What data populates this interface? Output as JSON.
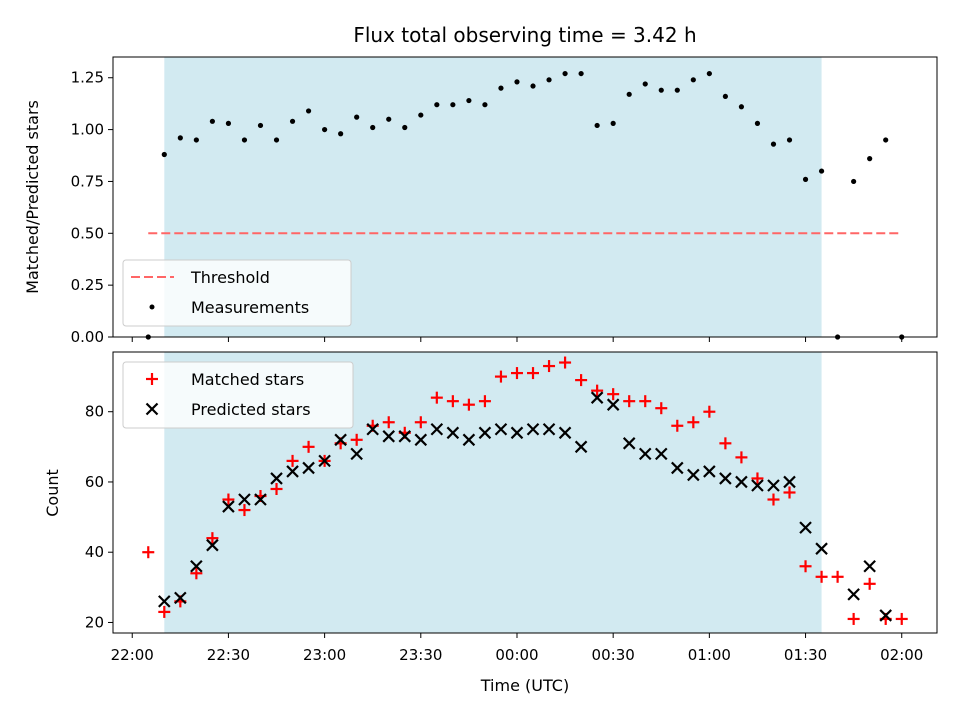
{
  "chart_data": {
    "type": "scatter",
    "title": "Flux total observing time = 3.42 h",
    "xlabel": "Time (UTC)",
    "x_ticks": [
      "22:00",
      "22:30",
      "23:00",
      "23:30",
      "00:00",
      "00:30",
      "01:00",
      "01:30",
      "02:00"
    ],
    "x_tick_minutes": [
      0,
      30,
      60,
      90,
      120,
      150,
      180,
      210,
      240
    ],
    "xlim_minutes": [
      -6,
      251
    ],
    "highlight_span_minutes": [
      10,
      215
    ],
    "colors": {
      "highlight": "#add8e6",
      "threshold": "#ff6666",
      "measurements": "#000000",
      "matched": "#ff0000",
      "predicted": "#000000"
    },
    "top": {
      "ylabel": "Matched/Predicted stars",
      "ylim": [
        0,
        1.35
      ],
      "y_ticks": [
        "0.00",
        "0.25",
        "0.50",
        "0.75",
        "1.00",
        "1.25"
      ],
      "y_tick_values": [
        0,
        0.25,
        0.5,
        0.75,
        1.0,
        1.25
      ],
      "legend": [
        "Threshold",
        "Measurements"
      ],
      "threshold": {
        "value": 0.5,
        "x_start": 5,
        "x_end": 240
      },
      "measurements": {
        "x": [
          5,
          10,
          15,
          20,
          25,
          30,
          35,
          40,
          45,
          50,
          55,
          60,
          65,
          70,
          75,
          80,
          85,
          90,
          95,
          100,
          105,
          110,
          115,
          120,
          125,
          130,
          135,
          140,
          145,
          150,
          155,
          160,
          165,
          170,
          175,
          180,
          185,
          190,
          195,
          200,
          205,
          210,
          215,
          220,
          225,
          230,
          235,
          240
        ],
        "y": [
          0.0,
          0.88,
          0.96,
          0.95,
          1.04,
          1.03,
          0.95,
          1.02,
          0.95,
          1.04,
          1.09,
          1.0,
          0.98,
          1.06,
          1.01,
          1.05,
          1.01,
          1.07,
          1.12,
          1.12,
          1.14,
          1.12,
          1.2,
          1.23,
          1.21,
          1.24,
          1.27,
          1.27,
          1.02,
          1.03,
          1.17,
          1.22,
          1.19,
          1.19,
          1.24,
          1.27,
          1.16,
          1.11,
          1.03,
          0.93,
          0.95,
          0.76,
          0.8,
          0.0,
          0.75,
          0.86,
          0.95,
          0.0
        ]
      }
    },
    "bottom": {
      "ylabel": "Count",
      "ylim": [
        17,
        97
      ],
      "y_ticks": [
        "20",
        "40",
        "60",
        "80"
      ],
      "y_tick_values": [
        20,
        40,
        60,
        80
      ],
      "legend": [
        "Matched stars",
        "Predicted stars"
      ],
      "matched": {
        "x": [
          5,
          10,
          15,
          20,
          25,
          30,
          35,
          40,
          45,
          50,
          55,
          60,
          65,
          70,
          75,
          80,
          85,
          90,
          95,
          100,
          105,
          110,
          115,
          120,
          125,
          130,
          135,
          140,
          145,
          150,
          155,
          160,
          165,
          170,
          175,
          180,
          185,
          190,
          195,
          200,
          205,
          210,
          215,
          220,
          225,
          230,
          235,
          240
        ],
        "y": [
          40,
          23,
          26,
          34,
          44,
          55,
          52,
          56,
          58,
          66,
          70,
          66,
          71,
          72,
          76,
          77,
          74,
          77,
          84,
          83,
          82,
          83,
          90,
          91,
          91,
          93,
          94,
          89,
          86,
          85,
          83,
          83,
          81,
          76,
          77,
          80,
          71,
          67,
          61,
          55,
          57,
          36,
          33,
          33,
          21,
          31,
          21,
          21
        ]
      },
      "predicted": {
        "x": [
          10,
          15,
          20,
          25,
          30,
          35,
          40,
          45,
          50,
          55,
          60,
          65,
          70,
          75,
          80,
          85,
          90,
          95,
          100,
          105,
          110,
          115,
          120,
          125,
          130,
          135,
          140,
          145,
          150,
          155,
          160,
          165,
          170,
          175,
          180,
          185,
          190,
          195,
          200,
          205,
          210,
          215,
          225,
          230,
          235
        ],
        "y": [
          26,
          27,
          36,
          42,
          53,
          55,
          55,
          61,
          63,
          64,
          66,
          72,
          68,
          75,
          73,
          73,
          72,
          75,
          74,
          72,
          74,
          75,
          74,
          75,
          75,
          74,
          70,
          84,
          82,
          71,
          68,
          68,
          64,
          62,
          63,
          61,
          60,
          59,
          59,
          60,
          47,
          41,
          28,
          36,
          22
        ]
      }
    }
  }
}
